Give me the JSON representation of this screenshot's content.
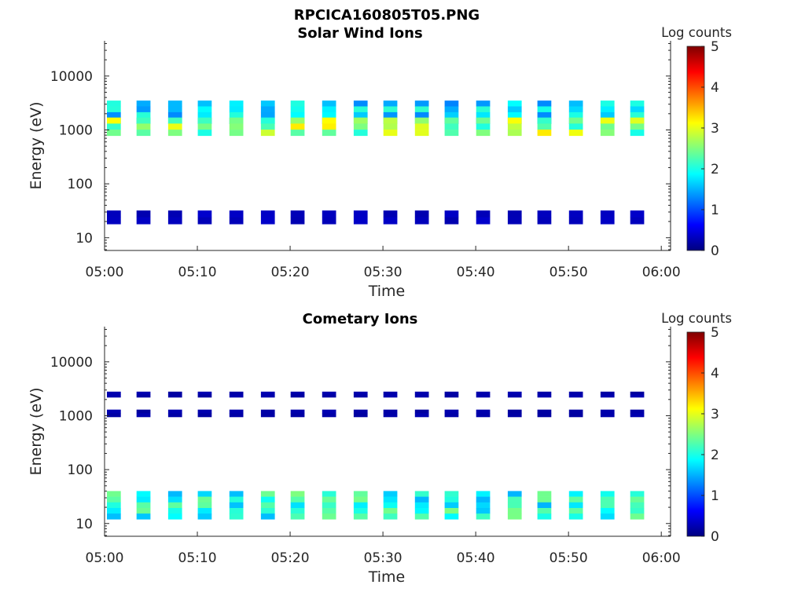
{
  "figure_title": "RPCICA160805T05.PNG",
  "colorscale": [
    "#00007f",
    "#0000ff",
    "#007fff",
    "#00ffff",
    "#7fff7f",
    "#ffff00",
    "#ff7f00",
    "#ff0000",
    "#7f0000"
  ],
  "chart_data": [
    {
      "type": "heatmap",
      "title": "Solar Wind Ions",
      "xlabel": "Time",
      "ylabel": "Energy (eV)",
      "x_tick_labels": [
        "05:00",
        "05:10",
        "05:20",
        "05:30",
        "05:40",
        "05:50",
        "06:00"
      ],
      "xlim_minutes": [
        0,
        61
      ],
      "y_tick_labels": [
        "10",
        "100",
        "1000",
        "10000"
      ],
      "y_scale": "log",
      "ylim": [
        5.8,
        45000
      ],
      "colorbar": {
        "label": "Log counts",
        "range": [
          0,
          5
        ],
        "tick_labels": [
          "0",
          "1",
          "2",
          "3",
          "4",
          "5"
        ]
      },
      "scan_times_minutes": [
        1.0,
        4.2,
        7.6,
        10.8,
        14.2,
        17.6,
        20.8,
        24.2,
        27.6,
        30.8,
        34.2,
        37.4,
        40.8,
        44.2,
        47.4,
        50.8,
        54.2,
        57.4
      ],
      "bands": [
        {
          "energy_min": 1300,
          "energy_max": 3500,
          "log_counts": 1.7
        },
        {
          "energy_min": 780,
          "energy_max": 1700,
          "log_counts": 2.6
        },
        {
          "energy_min": 18,
          "energy_max": 32,
          "log_counts": 0.3
        }
      ]
    },
    {
      "type": "heatmap",
      "title": "Cometary Ions",
      "xlabel": "Time",
      "ylabel": "Energy (eV)",
      "x_tick_labels": [
        "05:00",
        "05:10",
        "05:20",
        "05:30",
        "05:40",
        "05:50",
        "06:00"
      ],
      "xlim_minutes": [
        0,
        61
      ],
      "y_tick_labels": [
        "10",
        "100",
        "1000",
        "10000"
      ],
      "y_scale": "log",
      "ylim": [
        5.8,
        45000
      ],
      "colorbar": {
        "label": "Log counts",
        "range": [
          0,
          5
        ],
        "tick_labels": [
          "0",
          "1",
          "2",
          "3",
          "4",
          "5"
        ]
      },
      "scan_times_minutes": [
        1.0,
        4.2,
        7.6,
        10.8,
        14.2,
        17.6,
        20.8,
        24.2,
        27.6,
        30.8,
        34.2,
        37.4,
        40.8,
        44.2,
        47.4,
        50.8,
        54.2,
        57.4
      ],
      "bands": [
        {
          "energy_min": 2200,
          "energy_max": 2800,
          "log_counts": 0.2
        },
        {
          "energy_min": 950,
          "energy_max": 1300,
          "log_counts": 0.2
        },
        {
          "energy_min": 12,
          "energy_max": 40,
          "log_counts": 2.0
        }
      ]
    }
  ]
}
